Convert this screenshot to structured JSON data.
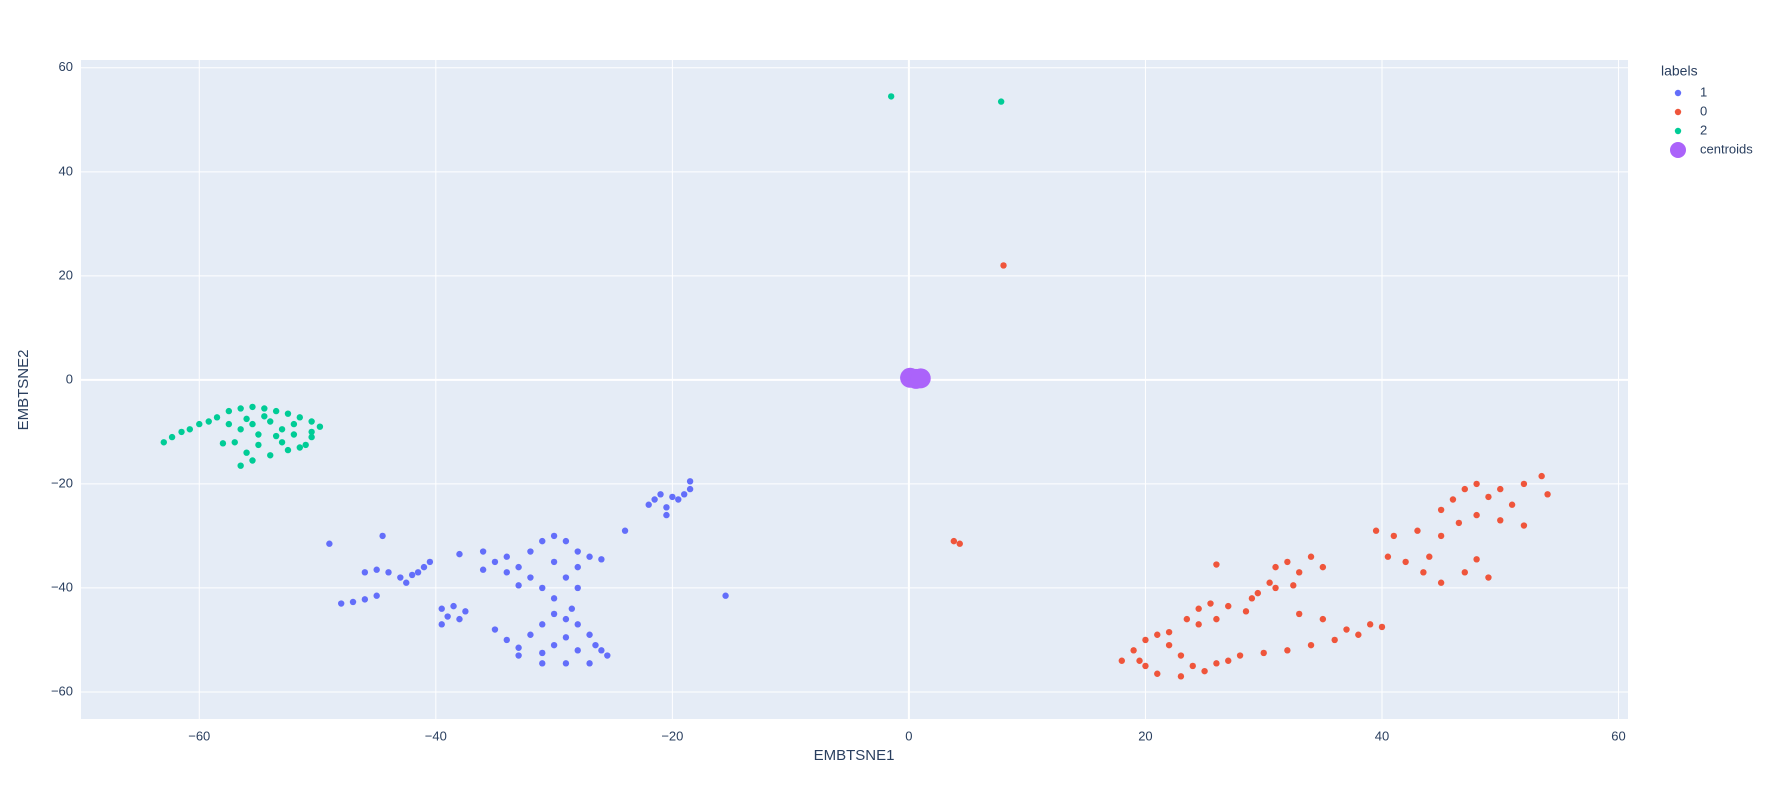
{
  "chart_data": {
    "type": "scatter",
    "x_label": "EMBTSNE1",
    "y_label": "EMBTSNE2",
    "legend_title": "labels",
    "legend_position": "right",
    "grid": true,
    "background": "#e5ecf6",
    "xlim": [
      -70,
      60.8
    ],
    "ylim": [
      -65.2,
      61.5
    ],
    "xticks": [
      {
        "value": -60,
        "label": "−60"
      },
      {
        "value": -40,
        "label": "−40"
      },
      {
        "value": -20,
        "label": "−20"
      },
      0,
      20,
      40,
      60
    ],
    "yticks": [
      {
        "value": -60,
        "label": "−60"
      },
      {
        "value": -40,
        "label": "−40"
      },
      {
        "value": -20,
        "label": "−20"
      },
      0,
      20,
      40,
      60
    ],
    "series": [
      {
        "name": "1",
        "color": "#636efa",
        "x": [
          -49,
          -44.5,
          -24,
          -15.5,
          -21.5,
          -21,
          -20,
          -19,
          -18.5,
          -18.5,
          -20.5,
          -20.5,
          -22,
          -19.5,
          -48,
          -47,
          -46,
          -45,
          -46,
          -45,
          -44,
          -43,
          -42,
          -41,
          -40.5,
          -42.5,
          -41.5,
          -39.5,
          -38.5,
          -37.5,
          -38,
          -39,
          -39.5,
          -38,
          -36,
          -34,
          -33,
          -32,
          -31,
          -30,
          -29,
          -28,
          -27,
          -26,
          -28,
          -30,
          -32,
          -34,
          -35,
          -29,
          -31,
          -30,
          -33,
          -28,
          -36,
          -35,
          -34,
          -33,
          -31,
          -29,
          -27,
          -25.5,
          -26,
          -28,
          -30,
          -32,
          -31,
          -30,
          -29,
          -28,
          -27,
          -29,
          -33,
          -26.5,
          -31,
          -28.5
        ],
        "y": [
          -31.5,
          -30,
          -29,
          -41.5,
          -23,
          -22,
          -22.5,
          -22,
          -21,
          -19.5,
          -24.5,
          -26,
          -24,
          -23,
          -43,
          -42.7,
          -42.2,
          -41.5,
          -37,
          -36.5,
          -37,
          -38,
          -37.5,
          -36,
          -35,
          -39,
          -37,
          -44,
          -43.5,
          -44.5,
          -46,
          -45.5,
          -47,
          -33.5,
          -33,
          -34,
          -36,
          -33,
          -31,
          -30,
          -31,
          -33,
          -34,
          -34.5,
          -36,
          -35,
          -38,
          -37,
          -35,
          -38,
          -40,
          -42,
          -39.5,
          -40,
          -36.5,
          -48,
          -50,
          -53,
          -54.5,
          -54.5,
          -54.5,
          -53,
          -52,
          -52,
          -51,
          -49,
          -47,
          -45,
          -46,
          -47,
          -49,
          -49.5,
          -51.5,
          -51,
          -52.5,
          -44
        ]
      },
      {
        "name": "0",
        "color": "#EF553B",
        "x": [
          8,
          3.8,
          4.3,
          26,
          18,
          19,
          20,
          21,
          22,
          23,
          24,
          25,
          26,
          27,
          28,
          23,
          21,
          20,
          22,
          19.5,
          23.5,
          24.5,
          25.5,
          27,
          28.5,
          26,
          24.5,
          29,
          29.5,
          30.5,
          31,
          32,
          33,
          34,
          35,
          32.5,
          31,
          30,
          32,
          34,
          36,
          38,
          39,
          40,
          33,
          35,
          37,
          39.5,
          41,
          43,
          45,
          40.5,
          42,
          43.5,
          45,
          47,
          48,
          49,
          44,
          45,
          46,
          47,
          48,
          50,
          52,
          53.5,
          54,
          51,
          50,
          48,
          46.5,
          52,
          49
        ],
        "y": [
          22,
          -31,
          -31.5,
          -35.5,
          -54,
          -52,
          -50,
          -49,
          -51,
          -53,
          -55,
          -56,
          -54.5,
          -54,
          -53,
          -57,
          -56.5,
          -55,
          -48.5,
          -54,
          -46,
          -44,
          -43,
          -43.5,
          -44.5,
          -46,
          -47,
          -42,
          -41,
          -39,
          -36,
          -35,
          -37,
          -34,
          -36,
          -39.5,
          -40,
          -52.5,
          -52,
          -51,
          -50,
          -49,
          -47,
          -47.5,
          -45,
          -46,
          -48,
          -29,
          -30,
          -29,
          -30,
          -34,
          -35,
          -37,
          -39,
          -37,
          -34.5,
          -38,
          -34,
          -25,
          -23,
          -21,
          -20,
          -21,
          -20,
          -18.5,
          -22,
          -24,
          -27,
          -26,
          -27.5,
          -28,
          -22.5
        ]
      },
      {
        "name": "2",
        "color": "#00cc96",
        "x": [
          -1.5,
          7.8,
          -63,
          -62.3,
          -61.5,
          -60.8,
          -60,
          -59.2,
          -58.5,
          -57.5,
          -56.5,
          -55.5,
          -54.5,
          -53.5,
          -52.5,
          -51.5,
          -50.5,
          -49.8,
          -50.5,
          -52,
          -53.5,
          -55,
          -56.5,
          -57.5,
          -56,
          -54,
          -52,
          -50.5,
          -51,
          -52.5,
          -54,
          -55.5,
          -56.5,
          -57,
          -55,
          -53,
          -51.5,
          -56,
          -58,
          -54.5,
          -53,
          -55.5
        ],
        "y": [
          54.5,
          53.5,
          -12,
          -11,
          -10,
          -9.5,
          -8.5,
          -8,
          -7.2,
          -6,
          -5.5,
          -5.2,
          -5.5,
          -6,
          -6.5,
          -7.2,
          -8,
          -9,
          -10,
          -10.5,
          -10.8,
          -10.5,
          -9.5,
          -8.5,
          -7.5,
          -8,
          -8.5,
          -11,
          -12.5,
          -13.5,
          -14.5,
          -15.5,
          -16.5,
          -12,
          -12.5,
          -12,
          -13,
          -14,
          -12.2,
          -7,
          -9.5,
          -8.5
        ]
      },
      {
        "name": "centroids",
        "color": "#ab63fa",
        "size": "large",
        "x": [
          0.1,
          0.6,
          1.0
        ],
        "y": [
          0.4,
          0.2,
          0.3
        ]
      }
    ]
  }
}
